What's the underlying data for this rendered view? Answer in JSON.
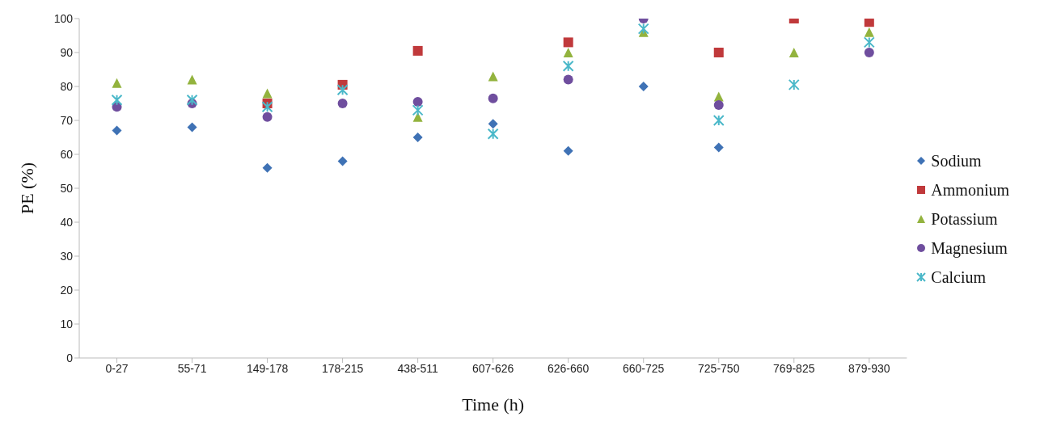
{
  "chart_data": {
    "type": "scatter",
    "xlabel": "Time (h)",
    "ylabel": "PE (%)",
    "categories": [
      "0-27",
      "55-71",
      "149-178",
      "178-215",
      "438-511",
      "607-626",
      "626-660",
      "660-725",
      "725-750",
      "769-825",
      "879-930"
    ],
    "ylim": [
      0,
      100
    ],
    "yticks": [
      0,
      10,
      20,
      30,
      40,
      50,
      60,
      70,
      80,
      90,
      100
    ],
    "grid": false,
    "legend": "right",
    "series": [
      {
        "name": "Sodium",
        "color": "#3f72b5",
        "marker": "diamond",
        "values": [
          67,
          68,
          56,
          58,
          65,
          69,
          61,
          80,
          62,
          null,
          null
        ]
      },
      {
        "name": "Ammonium",
        "color": "#c0393b",
        "marker": "square",
        "values": [
          null,
          null,
          75,
          80.5,
          90.5,
          null,
          93,
          null,
          90,
          100,
          99
        ]
      },
      {
        "name": "Potassium",
        "color": "#93b33e",
        "marker": "triangle",
        "values": [
          81,
          82,
          78,
          null,
          71,
          83,
          90,
          96,
          77,
          90,
          96
        ]
      },
      {
        "name": "Magnesium",
        "color": "#6f4e9e",
        "marker": "circle",
        "values": [
          74,
          75,
          71,
          75,
          75.5,
          76.5,
          82,
          100,
          74.5,
          null,
          90
        ]
      },
      {
        "name": "Calcium",
        "color": "#4bb8c9",
        "marker": "cross",
        "values": [
          76,
          76,
          74,
          79,
          73,
          66,
          86,
          97,
          70,
          80.5,
          93
        ]
      }
    ]
  }
}
